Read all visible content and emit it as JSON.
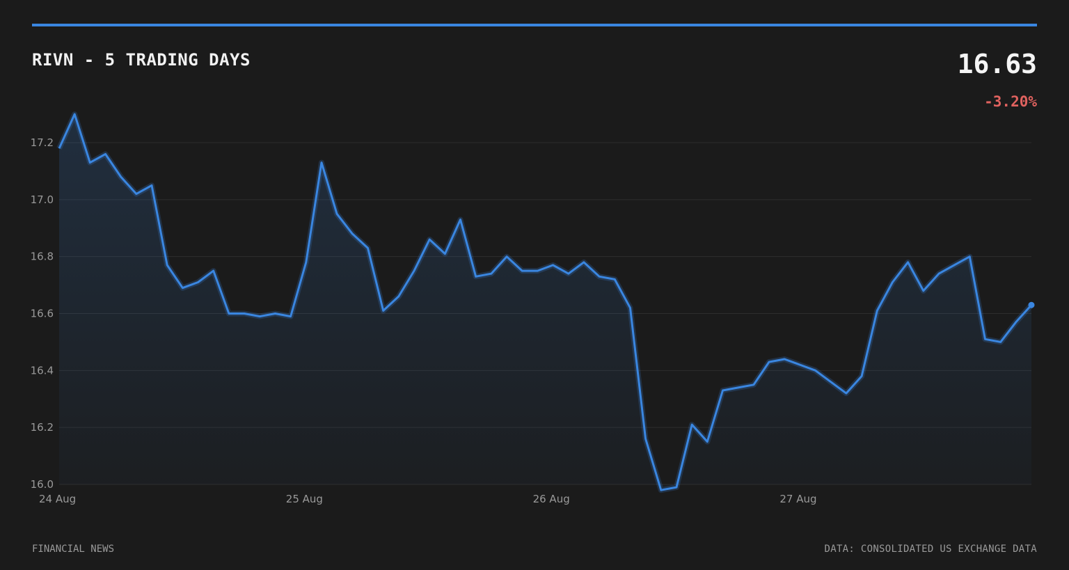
{
  "header": {
    "title": "RIVN - 5 TRADING DAYS",
    "price": "16.63",
    "change": "-3.20%"
  },
  "colors": {
    "background": "#1b1b1b",
    "accent": "#3a86e0",
    "negative": "#e0625f",
    "grid": "#2e2e2e",
    "axis_text": "#9a9a9a"
  },
  "footer": {
    "source_left": "FINANCIAL NEWS",
    "source_right": "DATA: CONSOLIDATED US EXCHANGE DATA"
  },
  "chart_data": {
    "type": "area",
    "title": "RIVN - 5 TRADING DAYS",
    "xlabel": "",
    "ylabel": "",
    "ylim": [
      16.0,
      17.2
    ],
    "yticks": [
      16.0,
      16.2,
      16.4,
      16.6,
      16.8,
      17.0,
      17.2
    ],
    "ytick_labels": [
      "16.0",
      "16.2",
      "16.4",
      "16.6",
      "16.8",
      "17.0",
      "17.2"
    ],
    "xlim": [
      0,
      63
    ],
    "xticks": [
      0,
      16,
      32,
      48
    ],
    "xtick_labels": [
      "24 Aug",
      "25 Aug",
      "26 Aug",
      "27 Aug"
    ],
    "grid": true,
    "legend": "none",
    "series": [
      {
        "values": [
          17.18,
          17.3,
          17.13,
          17.16,
          17.08,
          17.02,
          17.05,
          16.77,
          16.69,
          16.71,
          16.75,
          16.6,
          16.6,
          16.59,
          16.6,
          16.59,
          16.78,
          17.13,
          16.95,
          16.88,
          16.83,
          16.61,
          16.66,
          16.75,
          16.86,
          16.81,
          16.93,
          16.73,
          16.74,
          16.8,
          16.75,
          16.75,
          16.77,
          16.74,
          16.78,
          16.73,
          16.72,
          16.62,
          16.16,
          15.98,
          15.99,
          16.21,
          16.15,
          16.33,
          16.34,
          16.35,
          16.43,
          16.44,
          16.42,
          16.4,
          16.36,
          16.32,
          16.38,
          16.61,
          16.71,
          16.78,
          16.68,
          16.74,
          16.77,
          16.8,
          16.51,
          16.5,
          16.57,
          16.63
        ]
      }
    ]
  }
}
